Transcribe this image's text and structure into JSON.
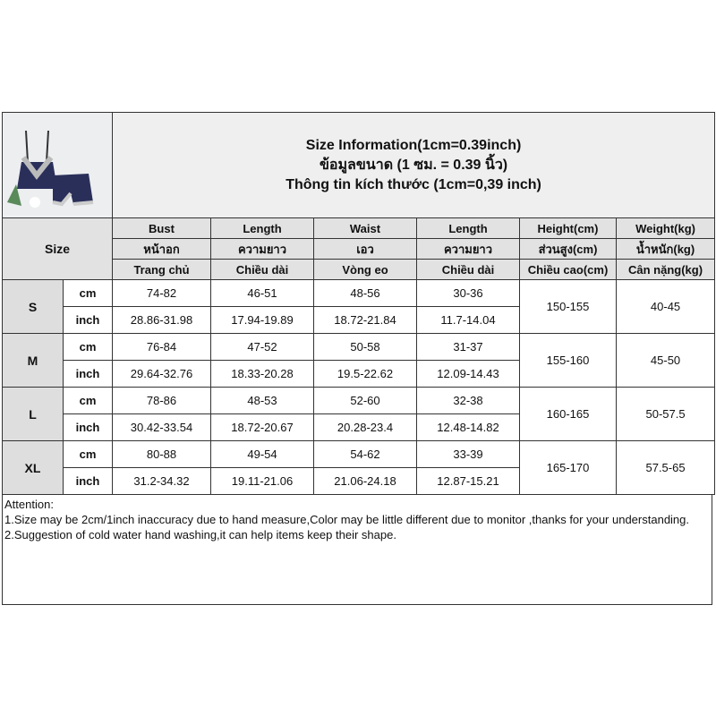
{
  "title": [
    "Size Information(1cm=0.39inch)",
    "ข้อมูลขนาด (1 ซม. = 0.39 นิ้ว)",
    "Thông tin kích thước (1cm=0,39 inch)"
  ],
  "size_label": "Size",
  "headers": [
    [
      "Bust",
      "Length",
      "Waist",
      "Length",
      "Height(cm)",
      "Weight(kg)"
    ],
    [
      "หน้าอก",
      "ความยาว",
      "เอว",
      "ความยาว",
      "ส่วนสูง(cm)",
      "น้ำหนัก(kg)"
    ],
    [
      "Trang chủ",
      "Chiều dài",
      "Vòng eo",
      "Chiều dài",
      "Chiều cao(cm)",
      "Cân nặng(kg)"
    ]
  ],
  "units": [
    "cm",
    "inch"
  ],
  "rows": [
    {
      "size": "S",
      "cm": [
        "74-82",
        "46-51",
        "48-56",
        "30-36"
      ],
      "inch": [
        "28.86-31.98",
        "17.94-19.89",
        "18.72-21.84",
        "11.7-14.04"
      ],
      "height": "150-155",
      "weight": "40-45"
    },
    {
      "size": "M",
      "cm": [
        "76-84",
        "47-52",
        "50-58",
        "31-37"
      ],
      "inch": [
        "29.64-32.76",
        "18.33-20.28",
        "19.5-22.62",
        "12.09-14.43"
      ],
      "height": "155-160",
      "weight": "45-50"
    },
    {
      "size": "L",
      "cm": [
        "78-86",
        "48-53",
        "52-60",
        "32-38"
      ],
      "inch": [
        "30.42-33.54",
        "18.72-20.67",
        "20.28-23.4",
        "12.48-14.82"
      ],
      "height": "160-165",
      "weight": "50-57.5"
    },
    {
      "size": "XL",
      "cm": [
        "80-88",
        "49-54",
        "54-62",
        "33-39"
      ],
      "inch": [
        "31.2-34.32",
        "19.11-21.06",
        "21.06-24.18",
        "12.87-15.21"
      ],
      "height": "165-170",
      "weight": "57.5-65"
    }
  ],
  "attention": [
    "Attention:",
    "1.Size may be 2cm/1inch inaccuracy due to hand measure,Color may be little different due to monitor ,thanks for your understanding.",
    "2.Suggestion of cold water hand washing,it can help items keep their shape."
  ]
}
